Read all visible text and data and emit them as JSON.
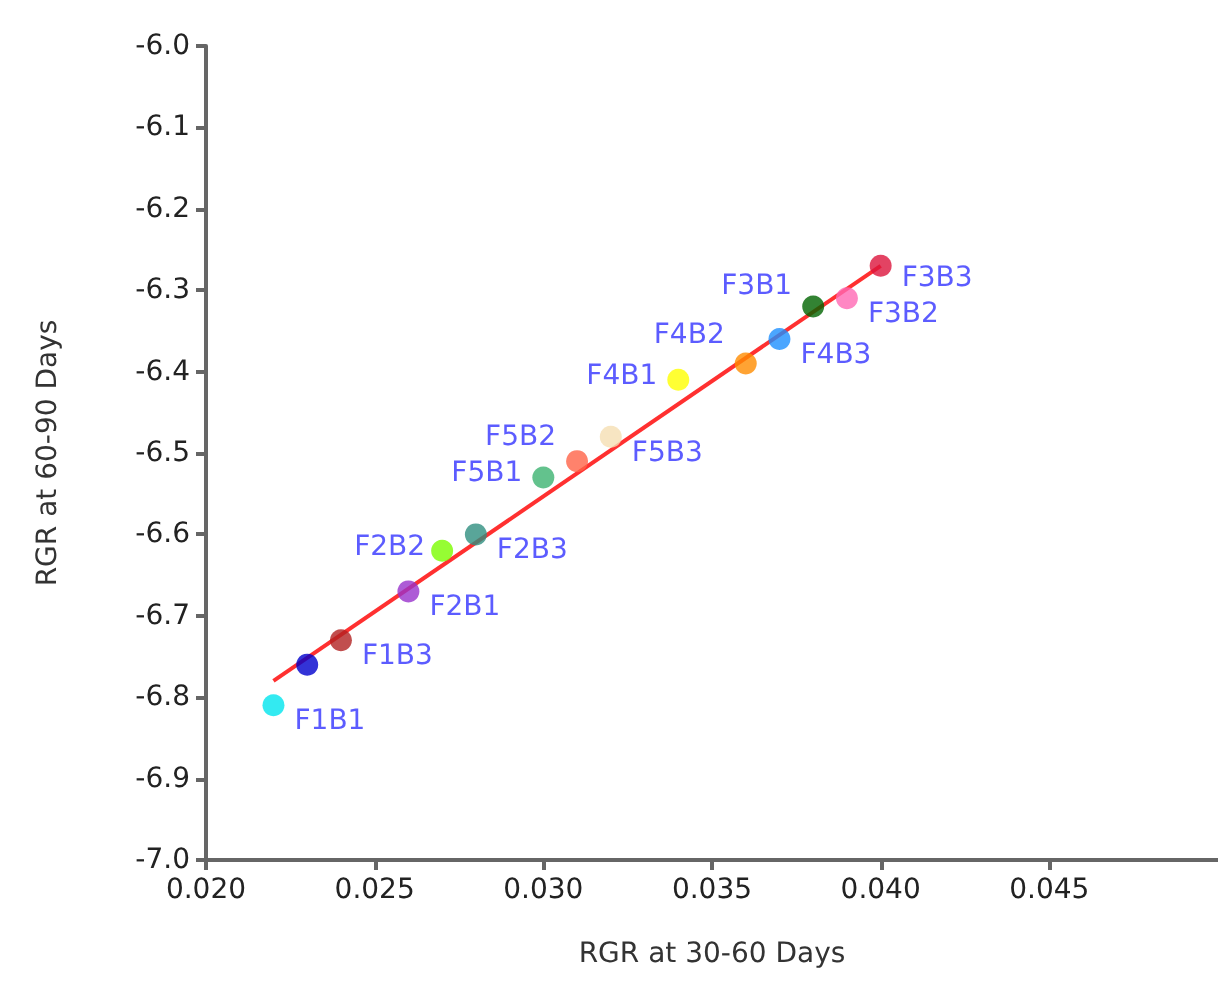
{
  "chart_data": {
    "type": "scatter",
    "xlabel": "RGR at 30-60 Days",
    "ylabel": "RGR at 60-90 Days",
    "xlim": [
      0.02,
      0.05
    ],
    "ylim": [
      -7.0,
      -6.0
    ],
    "xticks": [
      {
        "value": 0.02,
        "label": "0.020"
      },
      {
        "value": 0.025,
        "label": "0.025"
      },
      {
        "value": 0.03,
        "label": "0.030"
      },
      {
        "value": 0.035,
        "label": "0.035"
      },
      {
        "value": 0.04,
        "label": "0.040"
      },
      {
        "value": 0.045,
        "label": "0.045"
      }
    ],
    "yticks": [
      {
        "value": -7,
        "label": "-7.0"
      },
      {
        "value": -6.9,
        "label": "-6.9"
      },
      {
        "value": -6.8,
        "label": "-6.8"
      },
      {
        "value": -6.7,
        "label": "-6.7"
      },
      {
        "value": -6.6,
        "label": "-6.6"
      },
      {
        "value": -6.5,
        "label": "-6.5"
      },
      {
        "value": -6.4,
        "label": "-6.4"
      },
      {
        "value": -6.3,
        "label": "-6.3"
      },
      {
        "value": -6.2,
        "label": "-6.2"
      },
      {
        "value": -6.1,
        "label": "-6.1"
      },
      {
        "value": -6,
        "label": "-6.0"
      }
    ],
    "grid": false,
    "legend": false,
    "marker": "circle",
    "series": [
      {
        "name": "F1B1",
        "color": "#00e5ee",
        "x": [
          0.022
        ],
        "values": [
          -6.81
        ]
      },
      {
        "color": "#0000cd",
        "x": [
          0.023
        ],
        "values": [
          -6.76
        ]
      },
      {
        "name": "F1B3",
        "color": "#b22222",
        "x": [
          0.024
        ],
        "values": [
          -6.73
        ]
      },
      {
        "name": "F2B1",
        "color": "#9932cc",
        "x": [
          0.026
        ],
        "values": [
          -6.67
        ]
      },
      {
        "name": "F2B2",
        "color": "#7cfc00",
        "x": [
          0.027
        ],
        "values": [
          -6.62
        ]
      },
      {
        "name": "F2B3",
        "color": "#2f8f80",
        "x": [
          0.028
        ],
        "values": [
          -6.6
        ]
      },
      {
        "name": "F5B1",
        "color": "#3cb371",
        "x": [
          0.03
        ],
        "values": [
          -6.53
        ]
      },
      {
        "name": "F5B2",
        "color": "#ff6347",
        "x": [
          0.031
        ],
        "values": [
          -6.51
        ]
      },
      {
        "name": "F5B3",
        "color": "#f5deb3",
        "x": [
          0.032
        ],
        "values": [
          -6.48
        ]
      },
      {
        "name": "F4B1",
        "color": "#ffff00",
        "x": [
          0.034
        ],
        "values": [
          -6.41
        ]
      },
      {
        "name": "F4B2",
        "color": "#ff8c00",
        "x": [
          0.036
        ],
        "values": [
          -6.39
        ]
      },
      {
        "name": "F4B3",
        "color": "#1e90ff",
        "x": [
          0.037
        ],
        "values": [
          -6.36
        ]
      },
      {
        "name": "F3B1",
        "color": "#006400",
        "x": [
          0.038
        ],
        "values": [
          -6.32
        ]
      },
      {
        "name": "F3B2",
        "color": "#ff69b4",
        "x": [
          0.039
        ],
        "values": [
          -6.31
        ]
      },
      {
        "name": "F3B3",
        "color": "#dc143c",
        "x": [
          0.04
        ],
        "values": [
          -6.27
        ]
      },
      {
        "type": "line",
        "color": "#ff3030",
        "marker": "none",
        "x": [
          0.022,
          0.04
        ],
        "values": [
          -6.78,
          -6.27
        ]
      }
    ]
  }
}
